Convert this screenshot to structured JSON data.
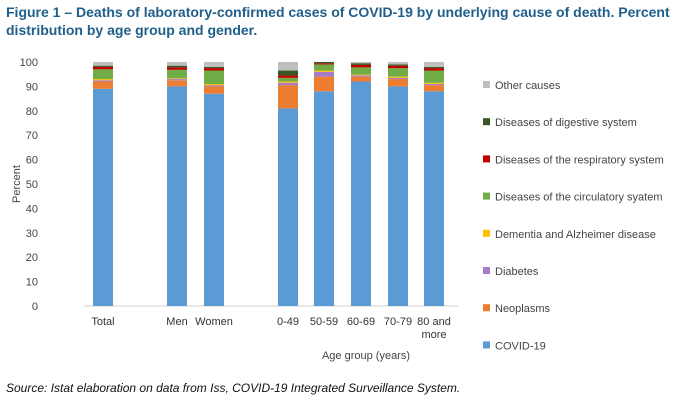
{
  "title": "Figure 1 – Deaths of laboratory-confirmed cases of COVID-19 by underlying cause of death. Percent distribution by age group and gender.",
  "source": "Source: Istat elaboration on data from Iss, COVID-19 Integrated Surveillance System.",
  "chart_data": {
    "type": "bar",
    "stacked": true,
    "categories": [
      "Total",
      "Men",
      "Women",
      "0-49",
      "50-59",
      "60-69",
      "70-79",
      "80 and more"
    ],
    "category_label_lines": [
      [
        "Total"
      ],
      [
        "Men"
      ],
      [
        "Women"
      ],
      [
        "0-49"
      ],
      [
        "50-59"
      ],
      [
        "60-69"
      ],
      [
        "70-79"
      ],
      [
        "80 and",
        "more"
      ]
    ],
    "xlabel": "Age group (years)",
    "ylabel": "Percent",
    "ylim": [
      0,
      100
    ],
    "yticks": [
      0,
      10,
      20,
      30,
      40,
      50,
      60,
      70,
      80,
      90,
      100
    ],
    "grid": false,
    "legend_position": "right",
    "series": [
      {
        "name": "COVID-19",
        "color": "#5b9bd5",
        "values": [
          89,
          90,
          87,
          81,
          88,
          92,
          90,
          88
        ]
      },
      {
        "name": "Neoplasms",
        "color": "#ed7d31",
        "values": [
          3,
          2.5,
          3,
          9.5,
          6,
          2,
          3,
          2.5
        ]
      },
      {
        "name": "Diabetes",
        "color": "#a77bca",
        "values": [
          0.5,
          0.5,
          0.5,
          1,
          2,
          0.5,
          0.5,
          0.5
        ]
      },
      {
        "name": "Dementia and Alzheimer disease",
        "color": "#ffc000",
        "values": [
          0.5,
          0.3,
          0.5,
          0.5,
          0.5,
          0.3,
          0.5,
          0.5
        ]
      },
      {
        "name": "Diseases of the circulatory syatem",
        "color": "#70ad47",
        "values": [
          4,
          3.5,
          5.5,
          1.5,
          2.5,
          3,
          3.5,
          5
        ]
      },
      {
        "name": "Diseases of the respiratory system",
        "color": "#c00000",
        "values": [
          1,
          1,
          1,
          1,
          0.5,
          1,
          1,
          1
        ]
      },
      {
        "name": "Diseases of digestive system",
        "color": "#375623",
        "values": [
          0.5,
          0.7,
          0.5,
          2,
          0.5,
          0.7,
          0.5,
          0.5
        ]
      },
      {
        "name": "Other causes",
        "color": "#bfbfbf",
        "values": [
          1.5,
          1.5,
          2,
          3.5,
          0,
          0.5,
          1,
          2
        ]
      }
    ]
  }
}
